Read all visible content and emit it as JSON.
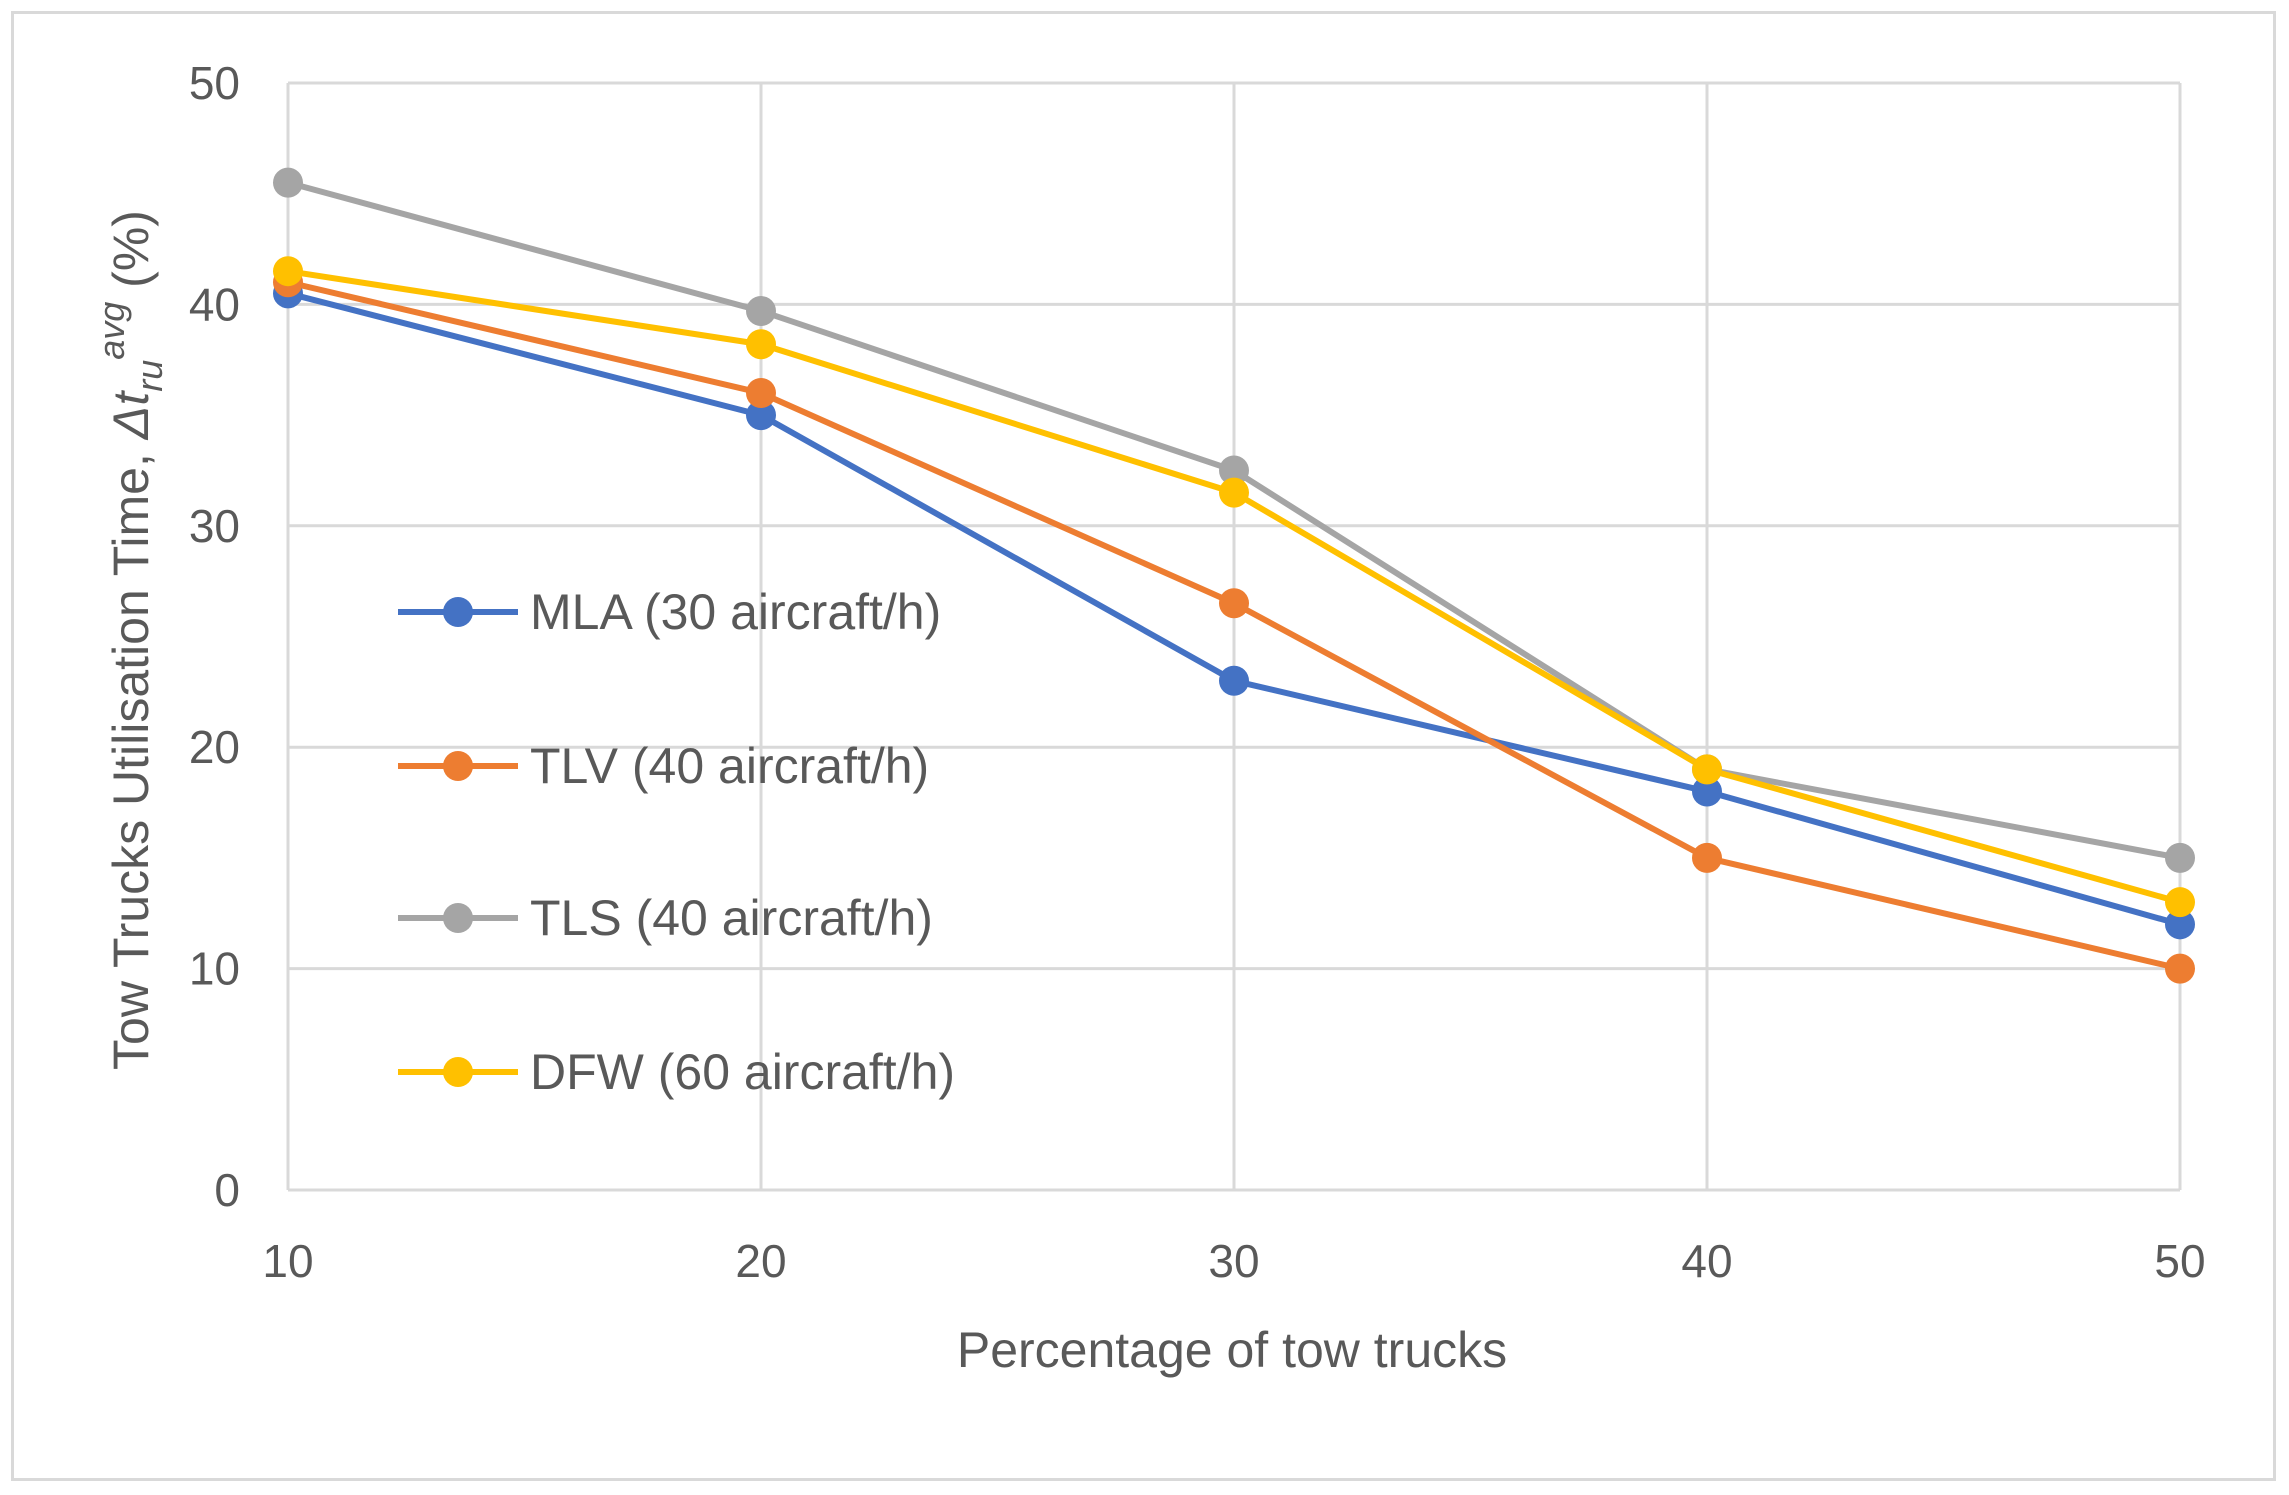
{
  "chart_data": {
    "type": "line",
    "title": "",
    "xlabel": "Percentage of tow trucks",
    "ylabel": {
      "main": "Tow Trucks Utilisation Time, ",
      "symbol": "Δt",
      "subscript": "ru",
      "superscript": "avg",
      "unit": " (%)"
    },
    "x": [
      10,
      20,
      30,
      40,
      50
    ],
    "x_ticks": [
      "10",
      "20",
      "30",
      "40",
      "50"
    ],
    "y_ticks": [
      "0",
      "10",
      "20",
      "30",
      "40",
      "50"
    ],
    "xlim": [
      10,
      50
    ],
    "ylim": [
      0,
      50
    ],
    "grid": true,
    "legend_position": "left-center",
    "series": [
      {
        "name": "MLA (30 aircraft/h)",
        "color": "#4472C4",
        "values": [
          40.5,
          35,
          23,
          18,
          12
        ]
      },
      {
        "name": "TLV (40 aircraft/h)",
        "color": "#ED7D31",
        "values": [
          41,
          36,
          26.5,
          15,
          10
        ]
      },
      {
        "name": "TLS (40 aircraft/h)",
        "color": "#A5A5A5",
        "values": [
          45.5,
          39.7,
          32.5,
          19,
          15
        ]
      },
      {
        "name": "DFW (60 aircraft/h)",
        "color": "#FFC000",
        "values": [
          41.5,
          38.2,
          31.5,
          19,
          13
        ]
      }
    ]
  }
}
